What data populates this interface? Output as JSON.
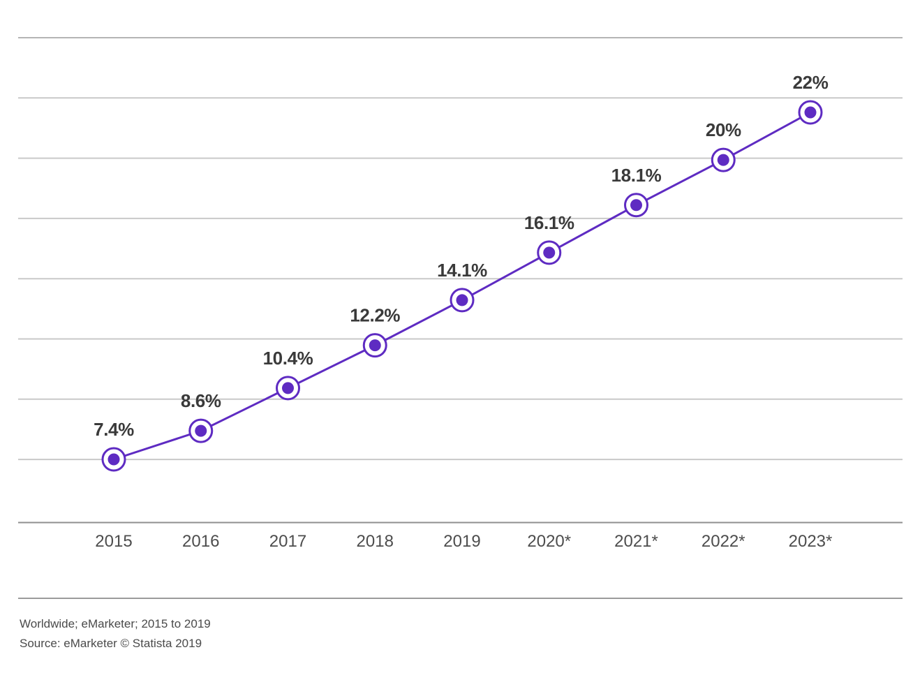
{
  "chart_data": {
    "type": "line",
    "title": "",
    "xlabel": "",
    "ylabel": "",
    "categories": [
      "2015",
      "2016",
      "2017",
      "2018",
      "2019",
      "2020*",
      "2021*",
      "2022*",
      "2023*"
    ],
    "values": [
      7.4,
      8.6,
      10.4,
      12.2,
      14.1,
      16.1,
      18.1,
      20,
      22
    ],
    "point_labels": [
      "7.4%",
      "8.6%",
      "10.4%",
      "12.2%",
      "14.1%",
      "16.1%",
      "18.1%",
      "20%",
      "22%"
    ],
    "ylim": [
      4.8,
      25.1
    ],
    "grid": "horizontal",
    "gridline_count": 8,
    "legend": "none",
    "marker_style": "ring-dot",
    "line_color": "#5e2bc2"
  },
  "footer": {
    "line1": "Worldwide; eMarketer; 2015 to 2019",
    "line2": "Source: eMarketer © Statista 2019"
  },
  "colors": {
    "accent": "#5e2bc2",
    "gridline": "#c9c9c9",
    "top_gridline": "#b5b5b5",
    "axis_line": "#8f8f8f",
    "divider_line": "#9b9b9b",
    "value_label_text": "#3a3a3a",
    "tick_label_text": "#4d4d4d",
    "footer_text": "#4a4a4a",
    "background": "#ffffff"
  }
}
